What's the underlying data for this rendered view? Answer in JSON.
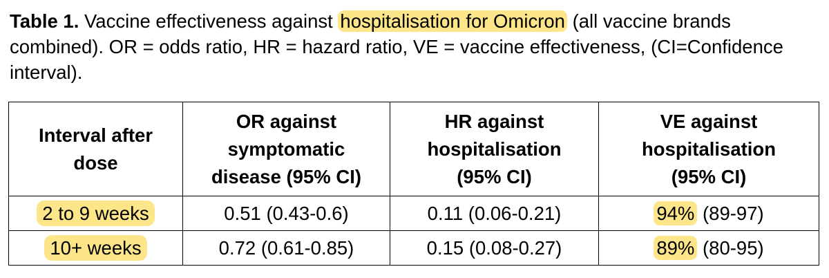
{
  "caption": {
    "label": "Table 1.",
    "text_before": " Vaccine effectiveness against ",
    "highlighted": "hospitalisation for Omicron",
    "text_after": " (all vaccine brands combined). OR = odds ratio, HR = hazard ratio, VE = vaccine effectiveness, (CI=Confidence interval).",
    "highlight_color": "#fde68a"
  },
  "table": {
    "headers": [
      "Interval after dose",
      "OR against symptomatic disease (95% CI)",
      "HR against hospitalisation (95% CI)",
      "VE against hospitalisation (95% CI)"
    ],
    "rows": [
      {
        "interval": "2 to 9 weeks",
        "or": "0.51 (0.43-0.6)",
        "hr": "0.11 (0.06-0.21)",
        "ve_pct": "94%",
        "ve_ci": " (89-97)"
      },
      {
        "interval": "10+ weeks",
        "or": "0.72 (0.61-0.85)",
        "hr": "0.15 (0.08-0.27)",
        "ve_pct": "89%",
        "ve_ci": " (80-95)"
      }
    ]
  }
}
